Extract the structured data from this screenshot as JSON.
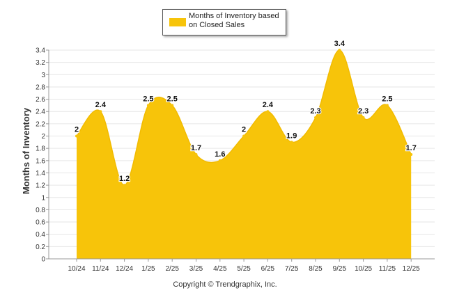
{
  "chart_data": {
    "type": "area",
    "title": "",
    "legend": {
      "label": "Months of Inventory based on Closed Sales",
      "placement": "top-center"
    },
    "ylabel": "Months of Inventory",
    "xlabel": "",
    "ylim": [
      0,
      3.4
    ],
    "ytick_step": 0.2,
    "grid": true,
    "categories": [
      "10/24",
      "11/24",
      "12/24",
      "1/25",
      "2/25",
      "3/25",
      "4/25",
      "5/25",
      "6/25",
      "7/25",
      "8/25",
      "9/25",
      "10/25",
      "11/25",
      "12/25"
    ],
    "series": [
      {
        "name": "Months of Inventory based on Closed Sales",
        "color": "#f7c40a",
        "values": [
          2,
          2.4,
          1.2,
          2.5,
          2.5,
          1.7,
          1.6,
          2,
          2.4,
          1.9,
          2.3,
          3.4,
          2.3,
          2.5,
          1.7
        ]
      }
    ]
  },
  "footer": {
    "copyright": "Copyright © Trendgraphix, Inc."
  }
}
